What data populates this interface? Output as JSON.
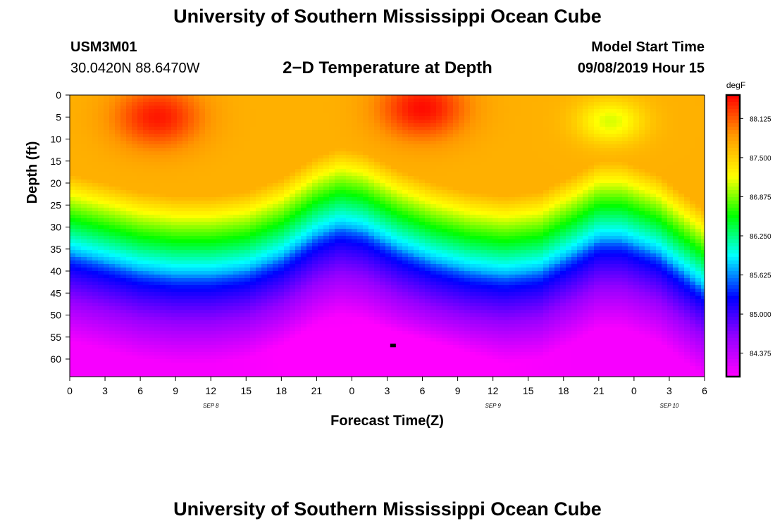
{
  "header": {
    "title": "University of Southern Mississippi Ocean Cube",
    "station": "USM3M01",
    "location": "30.0420N 88.6470W",
    "plot_title": "2−D Temperature at Depth",
    "model_label": "Model Start Time",
    "model_time": "09/08/2019 Hour 15"
  },
  "footer": {
    "title": "University of Southern Mississippi Ocean Cube"
  },
  "chart_data": {
    "type": "heatmap",
    "title": "2−D Temperature at Depth",
    "xlabel": "Forecast Time(Z)",
    "ylabel": "Depth (ft)",
    "x_ticks": [
      "0",
      "3",
      "6",
      "9",
      "12",
      "15",
      "18",
      "21",
      "0",
      "3",
      "6",
      "9",
      "12",
      "15",
      "18",
      "21",
      "0",
      "3",
      "6"
    ],
    "x_range_hours": [
      0,
      54
    ],
    "date_labels": [
      {
        "label": "SEP 8",
        "hour": 12
      },
      {
        "label": "SEP 9",
        "hour": 36
      },
      {
        "label": "SEP 10",
        "hour": 51
      }
    ],
    "y_ticks": [
      "0",
      "5",
      "10",
      "15",
      "20",
      "25",
      "30",
      "35",
      "40",
      "45",
      "50",
      "55",
      "60"
    ],
    "y_range_ft": [
      0,
      64
    ],
    "colorbar": {
      "unit": "degF",
      "min": 84.0,
      "max": 88.5,
      "tick_labels": [
        "88.125",
        "87.500",
        "86.875",
        "86.250",
        "85.625",
        "85.000",
        "84.375"
      ],
      "tick_values": [
        88.125,
        87.5,
        86.875,
        86.25,
        85.625,
        85.0,
        84.375
      ]
    },
    "thermocline_depth_ft": [
      {
        "hour": 0,
        "depth": 36
      },
      {
        "hour": 3,
        "depth": 38
      },
      {
        "hour": 6,
        "depth": 40
      },
      {
        "hour": 9,
        "depth": 41
      },
      {
        "hour": 12,
        "depth": 41
      },
      {
        "hour": 15,
        "depth": 40
      },
      {
        "hour": 18,
        "depth": 37
      },
      {
        "hour": 21,
        "depth": 32
      },
      {
        "hour": 23,
        "depth": 30
      },
      {
        "hour": 25,
        "depth": 31
      },
      {
        "hour": 28,
        "depth": 35
      },
      {
        "hour": 31,
        "depth": 38
      },
      {
        "hour": 34,
        "depth": 40
      },
      {
        "hour": 37,
        "depth": 41
      },
      {
        "hour": 40,
        "depth": 40
      },
      {
        "hour": 43,
        "depth": 36
      },
      {
        "hour": 45,
        "depth": 33
      },
      {
        "hour": 47,
        "depth": 33
      },
      {
        "hour": 50,
        "depth": 36
      },
      {
        "hour": 54,
        "depth": 44
      }
    ],
    "warm_cores": [
      {
        "hour": 7.5,
        "depth": 5,
        "temp": 88.4
      },
      {
        "hour": 30,
        "depth": 3,
        "temp": 88.45
      }
    ],
    "cool_surface_spot": {
      "hour": 46,
      "depth": 6,
      "temp": 87.1
    },
    "surface_temp": 87.7,
    "deep_temp_min": 84.05,
    "marker": {
      "hour": 27.5,
      "depth": 57
    }
  }
}
